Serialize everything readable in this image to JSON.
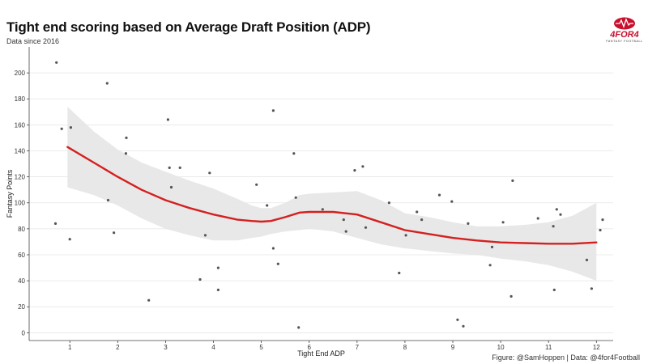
{
  "header": {
    "title": "Tight end scoring based on Average Draft Position (ADP)",
    "subtitle": "Data since 2016"
  },
  "caption": "Figure: @SamHoppen | Data: @4for4Football",
  "logo": {
    "text": "4FOR4",
    "subtext": "FANTASY FOOTBALL",
    "color": "#c8102e",
    "icon": "football-icon"
  },
  "colors": {
    "smooth_line": "#d42020",
    "band": "#e6e6e6",
    "points": "#555555",
    "grid": "#e4e4e4",
    "axis": "#444444"
  },
  "chart_data": {
    "type": "scatter",
    "xlabel": "Tight End ADP",
    "ylabel": "Fantasy Points",
    "xlim": [
      0.15,
      12.35
    ],
    "ylim": [
      -6,
      220
    ],
    "x_ticks": [
      1,
      2,
      3,
      4,
      5,
      6,
      7,
      8,
      9,
      10,
      11,
      12
    ],
    "y_ticks": [
      0,
      20,
      40,
      60,
      80,
      100,
      120,
      140,
      160,
      180,
      200
    ],
    "grid": true,
    "points": [
      [
        0.7,
        84
      ],
      [
        0.72,
        208
      ],
      [
        0.83,
        157
      ],
      [
        1.0,
        72
      ],
      [
        1.02,
        158
      ],
      [
        1.78,
        192
      ],
      [
        1.8,
        102
      ],
      [
        1.92,
        77
      ],
      [
        2.17,
        138
      ],
      [
        2.18,
        150
      ],
      [
        2.65,
        25
      ],
      [
        3.05,
        164
      ],
      [
        3.08,
        127
      ],
      [
        3.12,
        112
      ],
      [
        3.3,
        127
      ],
      [
        3.72,
        41
      ],
      [
        3.83,
        75
      ],
      [
        3.92,
        123
      ],
      [
        4.1,
        50
      ],
      [
        4.1,
        33
      ],
      [
        4.9,
        114
      ],
      [
        5.12,
        98
      ],
      [
        5.25,
        65
      ],
      [
        5.25,
        171
      ],
      [
        5.35,
        53
      ],
      [
        5.68,
        138
      ],
      [
        5.72,
        104
      ],
      [
        5.78,
        4
      ],
      [
        6.28,
        95
      ],
      [
        6.72,
        87
      ],
      [
        6.77,
        78
      ],
      [
        6.95,
        125
      ],
      [
        7.12,
        128
      ],
      [
        7.18,
        81
      ],
      [
        7.67,
        100
      ],
      [
        7.88,
        46
      ],
      [
        8.02,
        75
      ],
      [
        8.25,
        93
      ],
      [
        8.35,
        87
      ],
      [
        8.72,
        106
      ],
      [
        8.98,
        101
      ],
      [
        9.1,
        10
      ],
      [
        9.22,
        5
      ],
      [
        9.32,
        84
      ],
      [
        9.78,
        52
      ],
      [
        9.82,
        66
      ],
      [
        10.05,
        85
      ],
      [
        10.22,
        28
      ],
      [
        10.25,
        117
      ],
      [
        10.78,
        88
      ],
      [
        11.1,
        82
      ],
      [
        11.12,
        33
      ],
      [
        11.17,
        95
      ],
      [
        11.25,
        91
      ],
      [
        11.8,
        56
      ],
      [
        11.9,
        34
      ],
      [
        12.08,
        79
      ],
      [
        12.13,
        87
      ]
    ],
    "smooth": {
      "x": [
        0.95,
        1.5,
        2.0,
        2.5,
        3.0,
        3.5,
        4.0,
        4.5,
        4.8,
        5.0,
        5.2,
        5.5,
        5.8,
        6.0,
        6.5,
        7.0,
        7.5,
        8.0,
        8.5,
        9.0,
        9.5,
        10.0,
        10.5,
        11.0,
        11.5,
        12.0
      ],
      "y": [
        143,
        131,
        120,
        110,
        102,
        96,
        91,
        87,
        86,
        85.5,
        86,
        89,
        92.5,
        93,
        93,
        91,
        85,
        79,
        76,
        73,
        71,
        69.5,
        69,
        68.5,
        68.5,
        69.5
      ],
      "lower": [
        112,
        106,
        98,
        88,
        80,
        75,
        71,
        71,
        73,
        74,
        76,
        78,
        79,
        80,
        78,
        73,
        68,
        65,
        63,
        61,
        60,
        57,
        55,
        52,
        47,
        40
      ],
      "upper": [
        174,
        155,
        141,
        131,
        124,
        117,
        111,
        103,
        98,
        96,
        96,
        100,
        106,
        107,
        108,
        109,
        102,
        92,
        89,
        85,
        82,
        82,
        83,
        85,
        90,
        100
      ]
    }
  }
}
